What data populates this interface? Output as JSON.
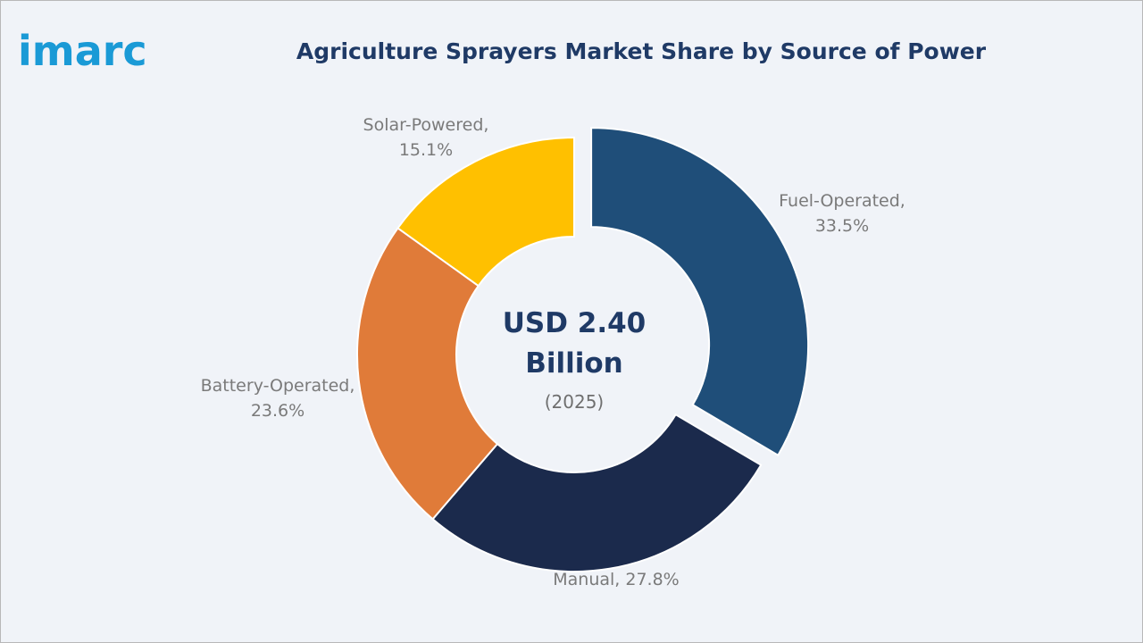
{
  "logo": "imarc",
  "chart_data": {
    "type": "donut",
    "title": "Agriculture Sprayers Market Share by Source of Power",
    "categories": [
      "Fuel-Operated,",
      "Manual,",
      "Battery-Operated,",
      "Solar-Powered,"
    ],
    "values": [
      33.5,
      27.8,
      23.6,
      15.1
    ],
    "value_labels": [
      "33.5%",
      "27.8%",
      "23.6%",
      "15.1%"
    ],
    "colors": [
      "#1f4e79",
      "#1b2a4c",
      "#e07b39",
      "#ffc000"
    ],
    "center_text": [
      "USD 2.40",
      "Billion",
      "(2025)"
    ]
  }
}
